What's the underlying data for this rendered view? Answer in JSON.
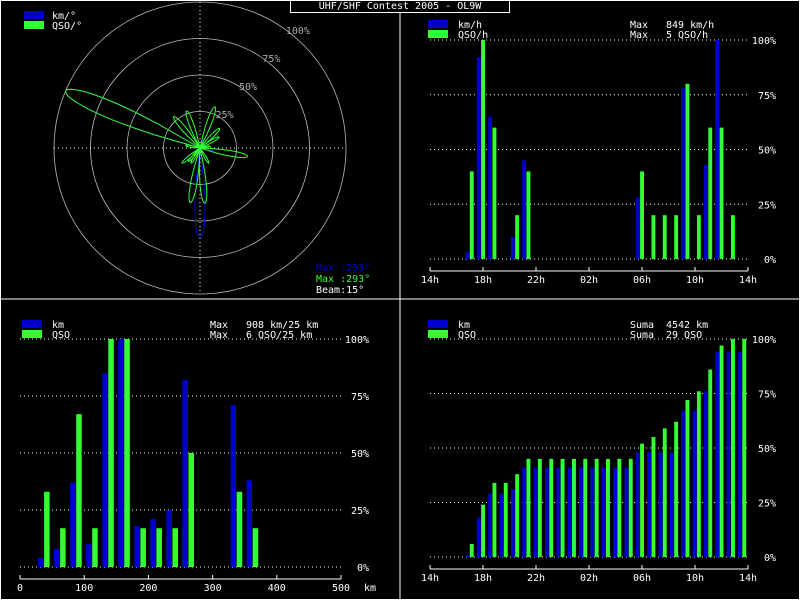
{
  "window_title": "UHF/SHF Contest 2005 - OL9W",
  "colors": {
    "km": "#0000cc",
    "qso": "#33ff33",
    "grid": "#ffffff",
    "text": "#ffffff",
    "ring": "#bbbbbb"
  },
  "chart_data": [
    {
      "id": "polar",
      "type": "polar",
      "legend": [
        {
          "name": "km/°",
          "color": "#0000cc"
        },
        {
          "name": "QSO/°",
          "color": "#33ff33"
        }
      ],
      "ring_labels": [
        "25%",
        "50%",
        "75%",
        "100%"
      ],
      "beam_width_deg": 15,
      "info": {
        "max_km": "Max :293°",
        "max_qso": "Max :293°",
        "beam": "Beam:15°"
      },
      "series": [
        {
          "name": "km/°",
          "points": [
            [
              293,
              100
            ],
            [
              100,
              9
            ],
            [
              170,
              3
            ],
            [
              180,
              61
            ],
            [
              220,
              4
            ],
            [
              20,
              6
            ],
            [
              40,
              5
            ]
          ]
        },
        {
          "name": "QSO/°",
          "points": [
            [
              293,
              100
            ],
            [
              100,
              33
            ],
            [
              175,
              38
            ],
            [
              190,
              38
            ],
            [
              210,
              12
            ],
            [
              220,
              12
            ],
            [
              230,
              16
            ],
            [
              320,
              28
            ],
            [
              340,
              27
            ],
            [
              20,
              30
            ],
            [
              45,
              19
            ],
            [
              60,
              15
            ],
            [
              80,
              7
            ],
            [
              150,
              12
            ],
            [
              280,
              10
            ]
          ]
        }
      ]
    },
    {
      "id": "hourly",
      "type": "bar",
      "legend": [
        {
          "name": "km/h",
          "color": "#0000cc"
        },
        {
          "name": "QSO/h",
          "color": "#33ff33"
        }
      ],
      "info": [
        {
          "label": "Max",
          "value": "849 km/h"
        },
        {
          "label": "Max",
          "value": "  5 QSO/h"
        }
      ],
      "x_ticks": [
        "14h",
        "18h",
        "22h",
        "02h",
        "06h",
        "10h",
        "14h"
      ],
      "y_ticks": [
        "100%",
        "75%",
        "50%",
        "25%",
        "0%"
      ],
      "ylim": [
        0,
        100
      ],
      "series": [
        {
          "name": "km/h",
          "values": [
            0,
            0,
            0,
            3,
            92,
            65,
            0,
            10,
            45,
            0,
            0,
            0,
            0,
            0,
            0,
            0,
            0,
            0,
            28,
            0,
            0,
            0,
            78,
            0,
            43,
            100,
            0,
            0
          ]
        },
        {
          "name": "QSO/h",
          "values": [
            0,
            0,
            0,
            40,
            100,
            60,
            0,
            20,
            40,
            0,
            0,
            0,
            0,
            0,
            0,
            0,
            0,
            0,
            40,
            20,
            20,
            20,
            80,
            20,
            60,
            60,
            20,
            0
          ]
        }
      ]
    },
    {
      "id": "distance",
      "type": "bar",
      "legend": [
        {
          "name": "km",
          "color": "#0000cc"
        },
        {
          "name": "QSO",
          "color": "#33ff33"
        }
      ],
      "info": [
        {
          "label": "Max",
          "value": "908 km/25 km"
        },
        {
          "label": "Max",
          "value": "  6 QSO/25 km"
        }
      ],
      "x_ticks": [
        "0",
        "100",
        "200",
        "300",
        "400",
        "500"
      ],
      "x_unit": "km",
      "y_ticks": [
        "100%",
        "75%",
        "50%",
        "25%",
        "0%"
      ],
      "ylim": [
        0,
        100
      ],
      "series": [
        {
          "name": "km",
          "values": [
            0,
            4,
            8,
            37,
            10,
            85,
            100,
            18,
            21,
            25,
            82,
            0,
            0,
            71,
            38,
            0,
            0,
            0,
            0,
            0
          ]
        },
        {
          "name": "QSO",
          "values": [
            0,
            33,
            17,
            67,
            17,
            100,
            100,
            17,
            17,
            17,
            50,
            0,
            0,
            33,
            17,
            0,
            0,
            0,
            0,
            0
          ]
        }
      ]
    },
    {
      "id": "cumulative",
      "type": "bar",
      "legend": [
        {
          "name": "km",
          "color": "#0000cc"
        },
        {
          "name": "QSO",
          "color": "#33ff33"
        }
      ],
      "info": [
        {
          "label": "Suma",
          "value": "4542 km"
        },
        {
          "label": "Suma",
          "value": "  29 QSO"
        }
      ],
      "x_ticks": [
        "14h",
        "18h",
        "22h",
        "02h",
        "06h",
        "10h",
        "14h"
      ],
      "y_ticks": [
        "100%",
        "75%",
        "50%",
        "25%",
        "0%"
      ],
      "ylim": [
        0,
        100
      ],
      "series": [
        {
          "name": "km",
          "values": [
            0,
            0,
            0,
            1,
            18,
            29,
            29,
            31,
            41,
            41,
            41,
            41,
            41,
            41,
            41,
            41,
            41,
            41,
            48,
            48,
            48,
            48,
            67,
            67,
            76,
            94,
            94,
            94
          ]
        },
        {
          "name": "QSO",
          "values": [
            0,
            0,
            0,
            6,
            24,
            34,
            34,
            38,
            45,
            45,
            45,
            45,
            45,
            45,
            45,
            45,
            45,
            45,
            52,
            55,
            59,
            62,
            72,
            76,
            86,
            97,
            100,
            100
          ]
        }
      ]
    }
  ]
}
